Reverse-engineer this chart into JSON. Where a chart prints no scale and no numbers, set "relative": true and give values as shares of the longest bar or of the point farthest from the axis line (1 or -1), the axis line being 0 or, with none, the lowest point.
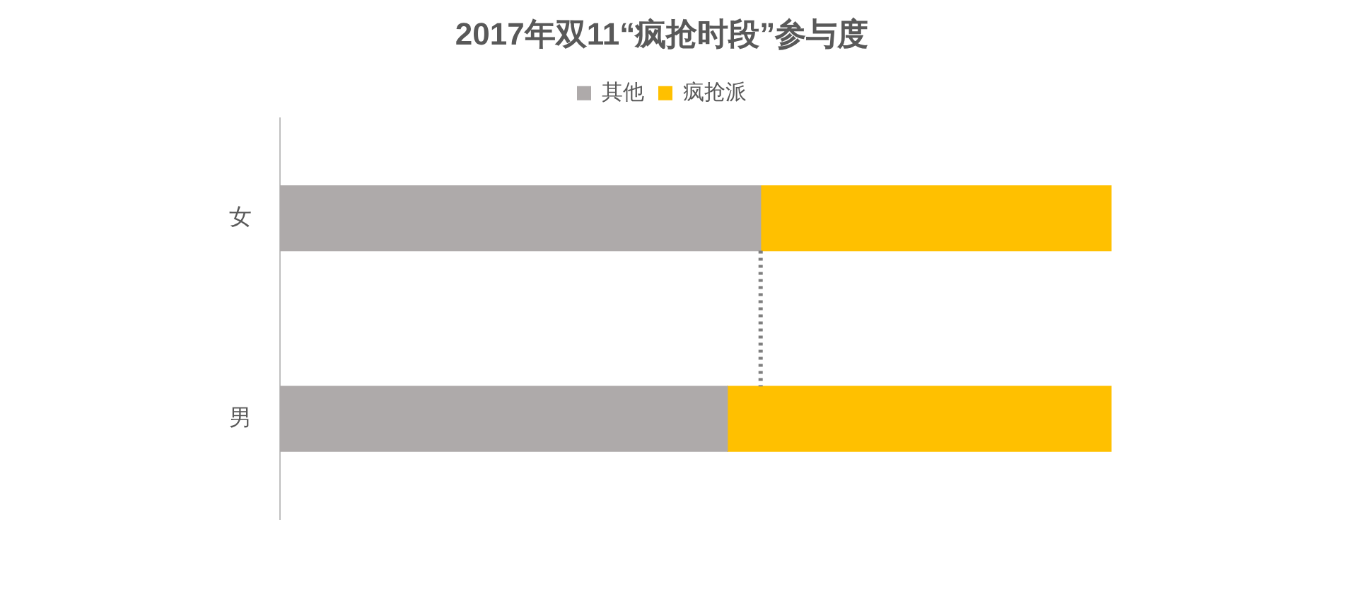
{
  "chart_data": {
    "type": "bar",
    "title": "2017年双11“疯抢时段”参与度",
    "orientation": "horizontal",
    "stacked": true,
    "relative": true,
    "categories": [
      "女",
      "男"
    ],
    "series": [
      {
        "name": "其他",
        "color": "#aeaaaa",
        "values": [
          0.578,
          0.538
        ]
      },
      {
        "name": "疯抢派",
        "color": "#ffc000",
        "values": [
          0.422,
          0.462
        ]
      }
    ],
    "ref_lines": [
      {
        "axis": "x",
        "value": 0.578,
        "line_style": "dotted",
        "color": "#7f7f7f"
      }
    ],
    "legend": "top",
    "grid": false
  }
}
